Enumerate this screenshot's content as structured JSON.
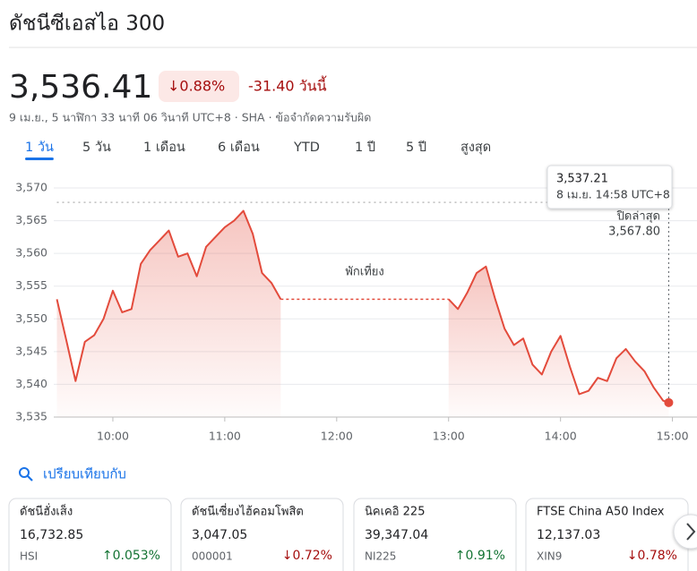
{
  "header": {
    "title": "ดัชนีซีเอสไอ 300",
    "price": "3,536.41",
    "change_percent": "↓0.88%",
    "change_today": "-31.40 วันนี้",
    "subline": "9 เม.ย., 5 นาฬิกา 33 นาที 06 วินาที UTC+8 · SHA · ข้อจำกัดความรับผิด"
  },
  "tabs": {
    "items": [
      "1 วัน",
      "5 วัน",
      "1 เดือน",
      "6 เดือน",
      "YTD",
      "1 ปี",
      "5 ปี",
      "สูงสุด"
    ],
    "selected": 0
  },
  "chart_data": {
    "type": "line",
    "x": [
      "09:30",
      "09:35",
      "09:40",
      "09:45",
      "09:50",
      "09:55",
      "10:00",
      "10:05",
      "10:10",
      "10:15",
      "10:20",
      "10:25",
      "10:30",
      "10:35",
      "10:40",
      "10:45",
      "10:50",
      "10:55",
      "11:00",
      "11:05",
      "11:10",
      "11:15",
      "11:20",
      "11:25",
      "11:30",
      null,
      "13:00",
      "13:05",
      "13:10",
      "13:15",
      "13:20",
      "13:25",
      "13:30",
      "13:35",
      "13:40",
      "13:45",
      "13:50",
      "13:55",
      "14:00",
      "14:05",
      "14:10",
      "14:15",
      "14:20",
      "14:25",
      "14:30",
      "14:35",
      "14:40",
      "14:45",
      "14:50",
      "14:55",
      "14:58"
    ],
    "series": [
      {
        "color": "#e34b3c",
        "values": [
          3553.0,
          3546.8,
          3540.5,
          3546.5,
          3547.5,
          3550.0,
          3554.3,
          3551.0,
          3551.5,
          3558.4,
          3560.5,
          3562.0,
          3563.5,
          3559.5,
          3560.0,
          3556.5,
          3561.0,
          3562.5,
          3564.0,
          3565.0,
          3566.5,
          3563.0,
          3557.0,
          3555.5,
          3553.0,
          null,
          3553.0,
          3551.5,
          3554.0,
          3557.0,
          3558.0,
          3553.0,
          3548.5,
          3546.0,
          3547.0,
          3543.0,
          3541.5,
          3545.0,
          3547.4,
          3542.7,
          3538.5,
          3539.0,
          3541.0,
          3540.5,
          3544.0,
          3545.4,
          3543.5,
          3542.0,
          3539.5,
          3537.5,
          3537.21
        ]
      }
    ],
    "xlim": [
      "09:30",
      "15:05"
    ],
    "xticks": [
      "10:00",
      "11:00",
      "12:00",
      "13:00",
      "14:00",
      "15:00"
    ],
    "ylim": [
      3535,
      3570
    ],
    "yticks": [
      {
        "value": 3535,
        "label": "3,535"
      },
      {
        "value": 3540,
        "label": "3,540"
      },
      {
        "value": 3545,
        "label": "3,545"
      },
      {
        "value": 3550,
        "label": "3,550"
      },
      {
        "value": 3555,
        "label": "3,555"
      },
      {
        "value": 3560,
        "label": "3,560"
      },
      {
        "value": 3565,
        "label": "3,565"
      },
      {
        "value": 3570,
        "label": "3,570"
      }
    ],
    "grid": true,
    "previous_close": {
      "label": "ปิดล่าสุด",
      "value": 3567.8,
      "value_label": "3,567.80"
    },
    "break_label": "พักเที่ยง",
    "tooltip": {
      "value": "3,537.21",
      "time": "8 เม.ย. 14:58 UTC+8"
    }
  },
  "compare": {
    "label": "เปรียบเทียบกับ"
  },
  "cards": [
    {
      "name": "ดัชนีฮั่งเส็ง",
      "price": "16,732.85",
      "code": "HSI",
      "change": "↑0.053%",
      "direction": "up"
    },
    {
      "name": "ดัชนีเซี่ยงไฮ้คอมโพสิต",
      "price": "3,047.05",
      "code": "000001",
      "change": "↓0.72%",
      "direction": "down"
    },
    {
      "name": "นิคเคอิ 225",
      "price": "39,347.04",
      "code": "NI225",
      "change": "↑0.91%",
      "direction": "up"
    },
    {
      "name": "FTSE China A50 Index",
      "price": "12,137.03",
      "code": "XIN9",
      "change": "↓0.78%",
      "direction": "down"
    }
  ]
}
